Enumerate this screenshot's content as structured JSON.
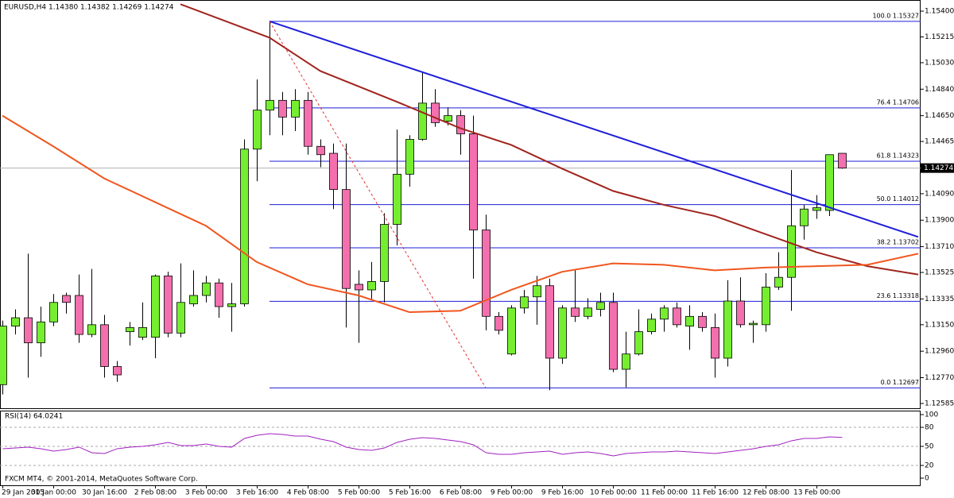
{
  "chart_data": [
    {
      "type": "candlestick",
      "title": "EURUSD,H4  1.14380 1.14382 1.14269 1.14274",
      "categories": [
        "29 Jan 2015",
        null,
        null,
        null,
        "30 Jan 00:00",
        null,
        null,
        null,
        "30 Jan 16:00",
        null,
        null,
        null,
        "2 Feb 08:00",
        null,
        null,
        null,
        "3 Feb 00:00",
        null,
        null,
        null,
        "3 Feb 16:00",
        null,
        null,
        null,
        "4 Feb 08:00",
        null,
        null,
        null,
        "5 Feb 00:00",
        null,
        null,
        null,
        "5 Feb 16:00",
        null,
        null,
        null,
        "6 Feb 08:00",
        null,
        null,
        null,
        "9 Feb 00:00",
        null,
        null,
        null,
        "9 Feb 16:00",
        null,
        null,
        null,
        "10 Feb 00:00",
        null,
        null,
        null,
        "11 Feb 00:00",
        null,
        null,
        null,
        "11 Feb 16:00",
        null,
        null,
        null,
        "12 Feb 08:00",
        null,
        null,
        null,
        "13 Feb 00:00",
        null,
        null
      ],
      "open": [
        1.1272,
        1.1314,
        1.132,
        1.1302,
        1.1317,
        1.1336,
        1.1336,
        1.1308,
        1.1315,
        1.1285,
        1.131,
        1.1306,
        1.1306,
        1.135,
        1.1309,
        1.133,
        1.1336,
        1.1345,
        1.1328,
        1.133,
        1.1441,
        1.1469,
        1.1476,
        1.1464,
        1.1476,
        1.1443,
        1.1438,
        1.1412,
        1.1344,
        1.134,
        1.1346,
        1.1387,
        1.1423,
        1.1448,
        1.1474,
        1.1461,
        1.1465,
        1.1452,
        1.1383,
        1.1321,
        1.1294,
        1.1327,
        1.1335,
        1.1343,
        1.1291,
        1.1327,
        1.1321,
        1.1326,
        1.1331,
        1.1283,
        1.1294,
        1.131,
        1.1319,
        1.1327,
        1.1314,
        1.1321,
        1.1313,
        1.1291,
        1.1332,
        1.1315,
        1.1315,
        1.1342,
        1.1349,
        1.1386,
        1.1397,
        1.1397,
        1.1438
      ],
      "high": [
        1.1318,
        1.1326,
        1.1366,
        1.1328,
        1.1337,
        1.1338,
        1.1351,
        1.1355,
        1.1322,
        1.1289,
        1.1317,
        1.1331,
        1.1351,
        1.1353,
        1.1359,
        1.1354,
        1.135,
        1.1348,
        1.1345,
        1.1448,
        1.1491,
        1.1533,
        1.1482,
        1.1484,
        1.1482,
        1.1448,
        1.1445,
        1.1445,
        1.1354,
        1.136,
        1.1395,
        1.1455,
        1.1451,
        1.1496,
        1.1484,
        1.1471,
        1.1469,
        1.1465,
        1.1394,
        1.1324,
        1.1329,
        1.134,
        1.135,
        1.1348,
        1.1329,
        1.1354,
        1.1334,
        1.1338,
        1.1338,
        1.131,
        1.1326,
        1.1323,
        1.1329,
        1.1331,
        1.1329,
        1.1324,
        1.1323,
        1.1347,
        1.1349,
        1.1318,
        1.1352,
        1.1367,
        1.1426,
        1.1401,
        1.1408,
        1.1437,
        1.14382
      ],
      "low": [
        1.1265,
        1.1308,
        1.1277,
        1.1292,
        1.1314,
        1.1323,
        1.1302,
        1.1306,
        1.1277,
        1.1274,
        1.13,
        1.1304,
        1.1291,
        1.1306,
        1.1306,
        1.1328,
        1.1331,
        1.132,
        1.131,
        1.1328,
        1.1418,
        1.1451,
        1.1451,
        1.1454,
        1.1437,
        1.1428,
        1.1398,
        1.1313,
        1.1302,
        1.1333,
        1.1331,
        1.1372,
        1.1414,
        1.1447,
        1.1457,
        1.1458,
        1.1437,
        1.1348,
        1.1311,
        1.1308,
        1.1293,
        1.1323,
        1.1315,
        1.1268,
        1.1287,
        1.1317,
        1.1319,
        1.1321,
        1.1281,
        1.127,
        1.1293,
        1.1308,
        1.131,
        1.1313,
        1.1297,
        1.131,
        1.1277,
        1.1285,
        1.1313,
        1.1302,
        1.131,
        1.134,
        1.1325,
        1.1376,
        1.1391,
        1.1393,
        1.14269
      ],
      "close": [
        1.1314,
        1.132,
        1.1302,
        1.1317,
        1.1331,
        1.1331,
        1.1308,
        1.1315,
        1.1285,
        1.1279,
        1.1313,
        1.1313,
        1.135,
        1.1309,
        1.1331,
        1.1336,
        1.1345,
        1.1328,
        1.133,
        1.1441,
        1.1469,
        1.1476,
        1.1464,
        1.1476,
        1.1443,
        1.1437,
        1.1412,
        1.1341,
        1.134,
        1.1346,
        1.1387,
        1.1423,
        1.1448,
        1.1474,
        1.146,
        1.1465,
        1.1452,
        1.1383,
        1.1321,
        1.1311,
        1.1327,
        1.1335,
        1.1343,
        1.1291,
        1.1327,
        1.1321,
        1.1327,
        1.1331,
        1.1283,
        1.1294,
        1.131,
        1.1319,
        1.1327,
        1.1315,
        1.1321,
        1.1313,
        1.1291,
        1.1332,
        1.1315,
        1.1316,
        1.1342,
        1.1349,
        1.1386,
        1.1398,
        1.1399,
        1.1437,
        1.14274
      ],
      "up_color": "#76ee30",
      "down_color": "#f36fae",
      "ylim": [
        1.12545,
        1.1548
      ],
      "yticks": [
        {
          "value": 1.154,
          "label": "1.15400"
        },
        {
          "value": 1.15215,
          "label": "1.15215"
        },
        {
          "value": 1.1503,
          "label": "1.15030"
        },
        {
          "value": 1.1484,
          "label": "1.14840"
        },
        {
          "value": 1.1465,
          "label": "1.14650"
        },
        {
          "value": 1.14465,
          "label": "1.14465"
        },
        {
          "value": 1.1409,
          "label": "1.14090"
        },
        {
          "value": 1.139,
          "label": "1.13900"
        },
        {
          "value": 1.1371,
          "label": "1.13710"
        },
        {
          "value": 1.13525,
          "label": "1.13525"
        },
        {
          "value": 1.13335,
          "label": "1.13335"
        },
        {
          "value": 1.1315,
          "label": "1.13150"
        },
        {
          "value": 1.1296,
          "label": "1.12960"
        },
        {
          "value": 1.1277,
          "label": "1.12770"
        },
        {
          "value": 1.12585,
          "label": "1.12585"
        }
      ],
      "lines": [
        {
          "color": "#a0241e",
          "style": "solid",
          "x": [
            14,
            21,
            25,
            31,
            36,
            40,
            44,
            48,
            52,
            56,
            60,
            64,
            68,
            72
          ],
          "values": [
            1.1545,
            1.1521,
            1.1497,
            1.1475,
            1.1456,
            1.1444,
            1.1427,
            1.1411,
            1.1401,
            1.1393,
            1.138,
            1.1367,
            1.1357,
            1.1351
          ]
        },
        {
          "color": "#f0561e",
          "style": "solid",
          "x": [
            0,
            4,
            8,
            12,
            16,
            20,
            24,
            28,
            32,
            36,
            40,
            44,
            48,
            52,
            56,
            60,
            64,
            68,
            72
          ],
          "values": [
            1.1465,
            1.1443,
            1.142,
            1.1403,
            1.1386,
            1.136,
            1.1344,
            1.1336,
            1.1324,
            1.1325,
            1.134,
            1.1353,
            1.1359,
            1.1358,
            1.1354,
            1.1356,
            1.1357,
            1.1358,
            1.1366
          ]
        },
        {
          "color": "#1f1fd8",
          "style": "solid",
          "x": [
            21,
            72
          ],
          "values": [
            1.15327,
            1.1378
          ]
        },
        {
          "color": "#e03030",
          "style": "dashed",
          "x": [
            21,
            38
          ],
          "values": [
            1.15327,
            1.12697
          ]
        }
      ],
      "fib_start": 21,
      "fib_color": "#1f1fd8",
      "fib_levels": [
        {
          "value": 1.15327,
          "label": "100.0 1.15327"
        },
        {
          "value": 1.14706,
          "label": "76.4 1.14706"
        },
        {
          "value": 1.14323,
          "label": "61.8 1.14323"
        },
        {
          "value": 1.14012,
          "label": "50.0 1.14012"
        },
        {
          "value": 1.13702,
          "label": "38.2 1.13702"
        },
        {
          "value": 1.13318,
          "label": "23.6 1.13318"
        },
        {
          "value": 1.12697,
          "label": "0.0 1.12697"
        }
      ],
      "current_price": 1.14274
    },
    {
      "type": "line",
      "title": "RSI(14) 64.0241",
      "color": "#a020c0",
      "values": [
        46.3,
        47.5,
        48.8,
        46.3,
        42.5,
        45,
        48.8,
        40,
        38.8,
        46.3,
        48.8,
        50,
        52.5,
        56.3,
        51.3,
        51.3,
        53.8,
        50,
        48.8,
        62.5,
        67.5,
        70,
        68.8,
        66.3,
        66.3,
        61.3,
        57.5,
        48.8,
        45,
        43.8,
        47.5,
        56.3,
        61.3,
        63.8,
        62.5,
        60,
        57.5,
        52.5,
        40,
        37.5,
        37.5,
        40,
        41.3,
        42.5,
        37.5,
        40,
        41.3,
        38.8,
        35,
        38.8,
        40,
        41.3,
        41.3,
        42.5,
        41.3,
        40,
        38.8,
        41.3,
        43.8,
        46.3,
        50,
        52.5,
        58.8,
        62.5,
        62.5,
        65,
        64.0241
      ],
      "ylim": [
        0,
        100
      ],
      "yticks": [
        0,
        20,
        50,
        80,
        100
      ],
      "levels_dashed": true,
      "footer": "FXCM MT4, © 2001-2014, MetaQuotes Software Corp."
    }
  ]
}
